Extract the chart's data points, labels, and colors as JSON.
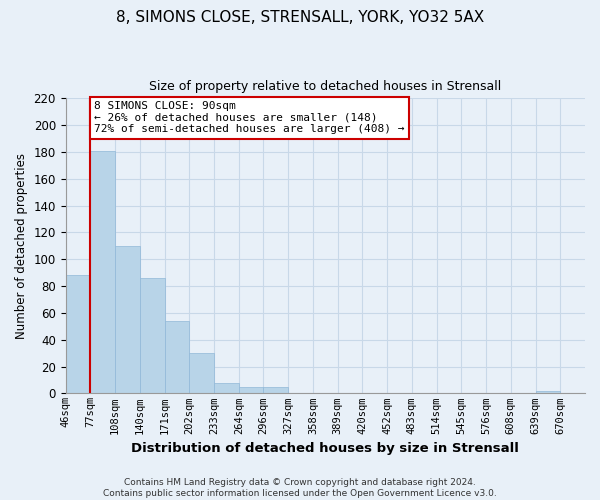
{
  "title": "8, SIMONS CLOSE, STRENSALL, YORK, YO32 5AX",
  "subtitle": "Size of property relative to detached houses in Strensall",
  "xlabel": "Distribution of detached houses by size in Strensall",
  "ylabel": "Number of detached properties",
  "bar_color": "#b8d4e8",
  "bar_edge_color": "#90b8d8",
  "grid_color": "#c8d8e8",
  "background_color": "#e8f0f8",
  "bins": [
    "46sqm",
    "77sqm",
    "108sqm",
    "140sqm",
    "171sqm",
    "202sqm",
    "233sqm",
    "264sqm",
    "296sqm",
    "327sqm",
    "358sqm",
    "389sqm",
    "420sqm",
    "452sqm",
    "483sqm",
    "514sqm",
    "545sqm",
    "576sqm",
    "608sqm",
    "639sqm",
    "670sqm"
  ],
  "values": [
    88,
    181,
    110,
    86,
    54,
    30,
    8,
    5,
    5,
    0,
    0,
    0,
    0,
    0,
    0,
    0,
    0,
    0,
    0,
    2,
    0
  ],
  "ylim": [
    0,
    220
  ],
  "yticks": [
    0,
    20,
    40,
    60,
    80,
    100,
    120,
    140,
    160,
    180,
    200,
    220
  ],
  "property_line_bin_index": 1,
  "annotation_title": "8 SIMONS CLOSE: 90sqm",
  "annotation_line1": "← 26% of detached houses are smaller (148)",
  "annotation_line2": "72% of semi-detached houses are larger (408) →",
  "annotation_box_color": "#ffffff",
  "annotation_border_color": "#cc0000",
  "footer_line1": "Contains HM Land Registry data © Crown copyright and database right 2024.",
  "footer_line2": "Contains public sector information licensed under the Open Government Licence v3.0."
}
